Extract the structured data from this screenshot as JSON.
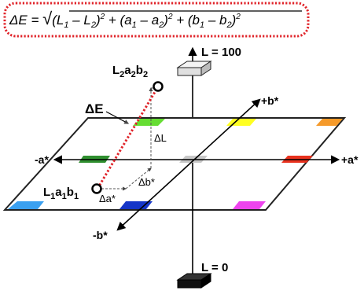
{
  "formula": {
    "lhs": "ΔE = ",
    "radical": "√",
    "term1": "(L",
    "term1_sub1": "1",
    "term1_mid": " – L",
    "term1_sub2": "2",
    "term1_close": ")",
    "term1_exp": "2",
    "plus1": " + (a",
    "term2_sub1": "1",
    "term2_mid": " – a",
    "term2_sub2": "2",
    "term2_close": ")",
    "term2_exp": "2",
    "plus2": " + (b",
    "term3_sub1": "1",
    "term3_mid": " – b",
    "term3_sub2": "2",
    "term3_close": ")",
    "term3_exp": "2"
  },
  "axes": {
    "l_top": "L = 100",
    "l_bottom": "L = 0",
    "plus_b": "+b*",
    "minus_b": "-b*",
    "plus_a": "+a*",
    "minus_a": "-a*"
  },
  "points": {
    "p2_L": "L",
    "p2_L_sub": "2",
    "p2_a": "a",
    "p2_a_sub": "2",
    "p2_b": "b",
    "p2_b_sub": "2",
    "p1_L": "L",
    "p1_L_sub": "1",
    "p1_a": "a",
    "p1_a_sub": "1",
    "p1_b": "b",
    "p1_b_sub": "1"
  },
  "deltas": {
    "delta_e": "ΔE",
    "delta_l": "ΔL",
    "delta_b": "Δb*",
    "delta_a": "Δa*"
  },
  "colors": {
    "formula_border": "#e0242a",
    "delta_e_line": "#e0242a",
    "white_block": "#e6e6e6",
    "black_block": "#111111",
    "center_patch": "#c8c8c8",
    "green": "#2f8f2f",
    "light_green": "#66dd33",
    "yellow": "#ffff22",
    "orange": "#f59a2a",
    "red": "#e8321e",
    "magenta": "#ee44ee",
    "blue": "#1536c8",
    "light_blue": "#3aa0f0"
  }
}
